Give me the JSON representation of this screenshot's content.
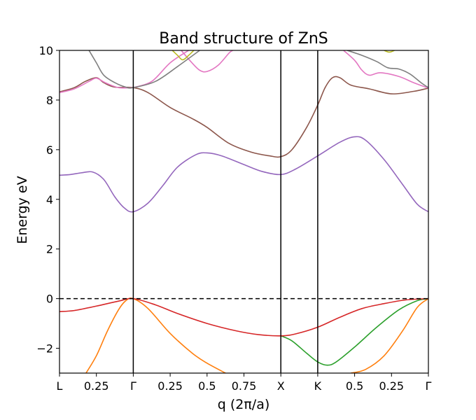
{
  "chart_data": {
    "type": "line",
    "title": "Band structure of ZnS",
    "xlabel": "q (2π/a)",
    "ylabel": "Energy eV",
    "xlim": [
      0,
      5.0
    ],
    "ylim": [
      -3,
      10
    ],
    "grid": false,
    "x_ticks": [
      {
        "x": 0.0,
        "label": "L"
      },
      {
        "x": 0.5,
        "label": "0.25"
      },
      {
        "x": 1.0,
        "label": "Γ"
      },
      {
        "x": 1.5,
        "label": "0.25"
      },
      {
        "x": 2.0,
        "label": "0.5"
      },
      {
        "x": 2.5,
        "label": "0.75"
      },
      {
        "x": 3.0,
        "label": "X"
      },
      {
        "x": 3.5,
        "label": "K"
      },
      {
        "x": 4.0,
        "label": "0.5"
      },
      {
        "x": 4.5,
        "label": "0.25"
      },
      {
        "x": 5.0,
        "label": "Γ"
      }
    ],
    "y_ticks": [
      {
        "y": -2,
        "label": "−2"
      },
      {
        "y": 0,
        "label": "0"
      },
      {
        "y": 2,
        "label": "2"
      },
      {
        "y": 4,
        "label": "4"
      },
      {
        "y": 6,
        "label": "6"
      },
      {
        "y": 8,
        "label": "8"
      },
      {
        "y": 10,
        "label": "10"
      }
    ],
    "vlines": [
      1.0,
      3.0,
      3.5
    ],
    "hline": {
      "y": 0,
      "style": "dashed",
      "color": "#000000"
    },
    "series": [
      {
        "color": "#ff7f0e",
        "points": [
          [
            0.36,
            -3.0
          ],
          [
            0.5,
            -2.3
          ],
          [
            0.65,
            -1.3
          ],
          [
            0.8,
            -0.45
          ],
          [
            0.9,
            -0.08
          ],
          [
            1.0,
            0
          ],
          [
            1.2,
            -0.4
          ],
          [
            1.5,
            -1.4
          ],
          [
            1.8,
            -2.2
          ],
          [
            2.0,
            -2.6
          ],
          [
            2.25,
            -3.0
          ]
        ]
      },
      {
        "color": "#ff7f0e",
        "points": [
          [
            3.95,
            -3.0
          ],
          [
            4.15,
            -2.85
          ],
          [
            4.4,
            -2.3
          ],
          [
            4.65,
            -1.3
          ],
          [
            4.85,
            -0.35
          ],
          [
            5.0,
            0
          ]
        ]
      },
      {
        "color": "#2ca02c",
        "points": [
          [
            3.0,
            -1.5
          ],
          [
            3.15,
            -1.7
          ],
          [
            3.35,
            -2.2
          ],
          [
            3.5,
            -2.55
          ],
          [
            3.63,
            -2.68
          ],
          [
            3.75,
            -2.55
          ],
          [
            4.0,
            -1.95
          ],
          [
            4.3,
            -1.15
          ],
          [
            4.6,
            -0.45
          ],
          [
            4.85,
            -0.08
          ],
          [
            5.0,
            0
          ]
        ]
      },
      {
        "color": "#d62728",
        "points": [
          [
            0.0,
            -0.52
          ],
          [
            0.2,
            -0.48
          ],
          [
            0.5,
            -0.3
          ],
          [
            0.8,
            -0.1
          ],
          [
            1.0,
            0
          ],
          [
            1.3,
            -0.25
          ],
          [
            1.6,
            -0.6
          ],
          [
            2.0,
            -1.0
          ],
          [
            2.4,
            -1.3
          ],
          [
            2.7,
            -1.45
          ],
          [
            3.0,
            -1.5
          ],
          [
            3.2,
            -1.42
          ],
          [
            3.5,
            -1.15
          ],
          [
            3.8,
            -0.75
          ],
          [
            4.1,
            -0.4
          ],
          [
            4.4,
            -0.2
          ],
          [
            4.7,
            -0.05
          ],
          [
            5.0,
            0
          ]
        ]
      },
      {
        "color": "#9467bd",
        "points": [
          [
            0.0,
            4.97
          ],
          [
            0.15,
            5.0
          ],
          [
            0.3,
            5.07
          ],
          [
            0.45,
            5.1
          ],
          [
            0.6,
            4.8
          ],
          [
            0.75,
            4.1
          ],
          [
            0.88,
            3.65
          ],
          [
            1.0,
            3.5
          ],
          [
            1.2,
            3.85
          ],
          [
            1.4,
            4.55
          ],
          [
            1.6,
            5.3
          ],
          [
            1.85,
            5.8
          ],
          [
            2.0,
            5.87
          ],
          [
            2.2,
            5.75
          ],
          [
            2.5,
            5.4
          ],
          [
            2.75,
            5.12
          ],
          [
            3.0,
            5.0
          ],
          [
            3.2,
            5.22
          ],
          [
            3.5,
            5.75
          ],
          [
            3.8,
            6.3
          ],
          [
            4.0,
            6.52
          ],
          [
            4.15,
            6.38
          ],
          [
            4.4,
            5.6
          ],
          [
            4.65,
            4.6
          ],
          [
            4.85,
            3.8
          ],
          [
            5.0,
            3.5
          ]
        ]
      },
      {
        "color": "#8c564b",
        "points": [
          [
            0.0,
            8.33
          ],
          [
            0.2,
            8.5
          ],
          [
            0.35,
            8.75
          ],
          [
            0.5,
            8.9
          ],
          [
            0.6,
            8.7
          ],
          [
            0.75,
            8.52
          ],
          [
            1.0,
            8.5
          ],
          [
            1.2,
            8.3
          ],
          [
            1.5,
            7.7
          ],
          [
            1.8,
            7.25
          ],
          [
            2.0,
            6.9
          ],
          [
            2.3,
            6.25
          ],
          [
            2.6,
            5.9
          ],
          [
            2.85,
            5.75
          ],
          [
            3.0,
            5.72
          ],
          [
            3.15,
            6.0
          ],
          [
            3.35,
            6.9
          ],
          [
            3.5,
            7.8
          ],
          [
            3.6,
            8.5
          ],
          [
            3.7,
            8.9
          ],
          [
            3.8,
            8.9
          ],
          [
            3.95,
            8.6
          ],
          [
            4.2,
            8.45
          ],
          [
            4.5,
            8.25
          ],
          [
            4.8,
            8.35
          ],
          [
            5.0,
            8.48
          ]
        ]
      },
      {
        "color": "#e377c2",
        "points": [
          [
            0.0,
            8.3
          ],
          [
            0.2,
            8.45
          ],
          [
            0.4,
            8.75
          ],
          [
            0.5,
            8.88
          ],
          [
            0.62,
            8.7
          ],
          [
            0.8,
            8.5
          ],
          [
            1.0,
            8.5
          ]
        ]
      },
      {
        "color": "#e377c2",
        "points": [
          [
            1.0,
            8.5
          ],
          [
            1.25,
            8.75
          ],
          [
            1.5,
            9.5
          ],
          [
            1.75,
            10.0
          ]
        ]
      },
      {
        "color": "#e377c2",
        "points": [
          [
            1.65,
            10.0
          ],
          [
            1.78,
            9.55
          ],
          [
            1.9,
            9.2
          ],
          [
            2.0,
            9.15
          ],
          [
            2.15,
            9.4
          ],
          [
            2.3,
            9.9
          ],
          [
            2.35,
            10.0
          ]
        ]
      },
      {
        "color": "#e377c2",
        "points": [
          [
            3.85,
            10.0
          ],
          [
            4.0,
            9.6
          ],
          [
            4.1,
            9.2
          ],
          [
            4.2,
            9.0
          ],
          [
            4.35,
            9.1
          ],
          [
            4.6,
            8.95
          ],
          [
            4.8,
            8.7
          ],
          [
            5.0,
            8.48
          ]
        ]
      },
      {
        "color": "#7f7f7f",
        "points": [
          [
            0.4,
            10.0
          ],
          [
            0.5,
            9.5
          ],
          [
            0.6,
            9.0
          ],
          [
            0.75,
            8.7
          ],
          [
            0.9,
            8.52
          ],
          [
            1.0,
            8.5
          ],
          [
            1.3,
            8.75
          ],
          [
            1.6,
            9.35
          ],
          [
            1.9,
            10.0
          ]
        ]
      },
      {
        "color": "#7f7f7f",
        "points": [
          [
            3.9,
            10.0
          ],
          [
            4.1,
            9.8
          ],
          [
            4.3,
            9.55
          ],
          [
            4.45,
            9.3
          ],
          [
            4.6,
            9.25
          ],
          [
            4.75,
            9.05
          ],
          [
            4.9,
            8.7
          ],
          [
            5.0,
            8.5
          ]
        ]
      },
      {
        "color": "#bcbd22",
        "points": [
          [
            1.53,
            10.0
          ],
          [
            1.6,
            9.8
          ],
          [
            1.67,
            9.62
          ],
          [
            1.75,
            9.8
          ],
          [
            1.82,
            10.0
          ]
        ]
      },
      {
        "color": "#bcbd22",
        "points": [
          [
            4.4,
            10.0
          ],
          [
            4.47,
            9.93
          ],
          [
            4.54,
            10.0
          ]
        ]
      }
    ]
  }
}
